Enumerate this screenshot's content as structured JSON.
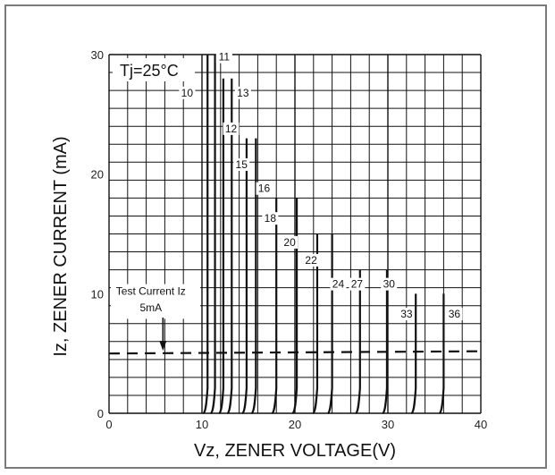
{
  "chart_data": {
    "type": "line",
    "title": "",
    "xlabel": "Vz, ZENER VOLTAGE(V)",
    "ylabel": "Iz, ZENER CURRENT (mA)",
    "xlim": [
      0,
      40
    ],
    "ylim": [
      0,
      30
    ],
    "x_ticks": [
      "0",
      "10",
      "20",
      "30",
      "40"
    ],
    "y_ticks": [
      "0",
      "10",
      "20",
      "30"
    ],
    "grid": true,
    "temperature_label": "Tj=25°C",
    "test_current_label_line1": "Test Current Iz",
    "test_current_label_line2": "5mA",
    "test_current_level_mA": 5,
    "series": [
      {
        "name": "10",
        "vz": 10.6,
        "imax": 30
      },
      {
        "name": "11",
        "vz": 11.4,
        "imax": 30
      },
      {
        "name": "12",
        "vz": 12.3,
        "imax": 28
      },
      {
        "name": "13",
        "vz": 13.2,
        "imax": 28
      },
      {
        "name": "15",
        "vz": 14.8,
        "imax": 23
      },
      {
        "name": "16",
        "vz": 15.8,
        "imax": 23
      },
      {
        "name": "18",
        "vz": 18.0,
        "imax": 18
      },
      {
        "name": "20",
        "vz": 20.2,
        "imax": 18
      },
      {
        "name": "22",
        "vz": 22.4,
        "imax": 15
      },
      {
        "name": "24",
        "vz": 24.0,
        "imax": 15
      },
      {
        "name": "27",
        "vz": 27.0,
        "imax": 12
      },
      {
        "name": "30",
        "vz": 29.9,
        "imax": 12
      },
      {
        "name": "33",
        "vz": 33.0,
        "imax": 10
      },
      {
        "name": "36",
        "vz": 36.0,
        "imax": 10
      }
    ]
  }
}
